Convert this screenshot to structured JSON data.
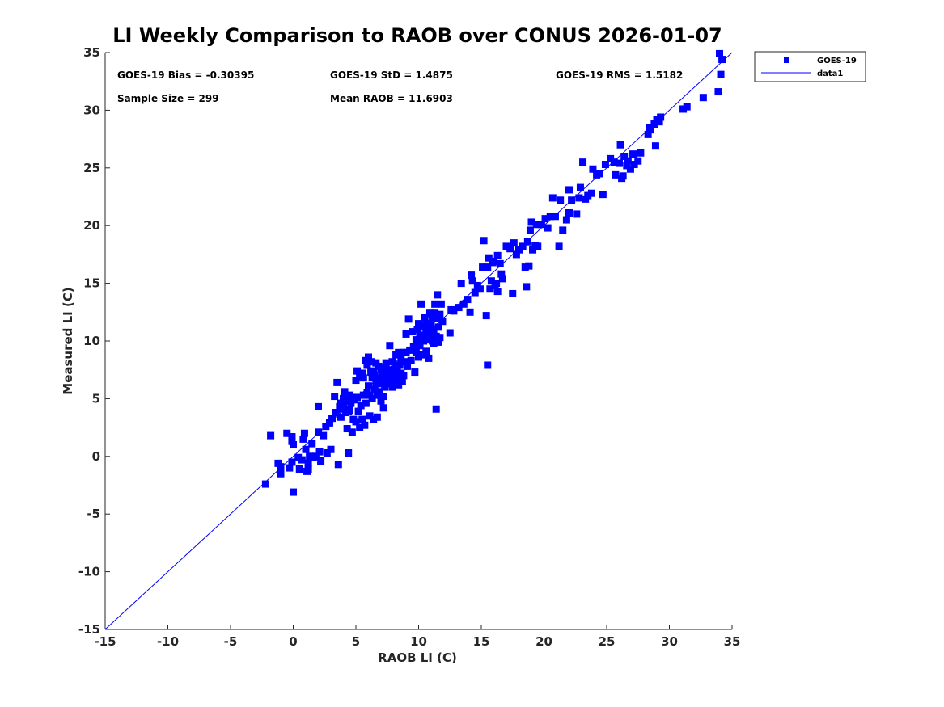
{
  "chart_data": {
    "type": "scatter",
    "title": "LI Weekly Comparison to RAOB over CONUS 2026-01-07",
    "xlabel": "RAOB LI (C)",
    "ylabel": "Measured LI (C)",
    "xlim": [
      -15,
      35
    ],
    "ylim": [
      -15,
      35
    ],
    "xticks": [
      -15,
      -10,
      -5,
      0,
      5,
      10,
      15,
      20,
      25,
      30,
      35
    ],
    "yticks": [
      -15,
      -10,
      -5,
      0,
      5,
      10,
      15,
      20,
      25,
      30,
      35
    ],
    "xtick_labels": [
      "-15",
      "-10",
      "-5",
      "0",
      "5",
      "10",
      "15",
      "20",
      "25",
      "30",
      "35"
    ],
    "ytick_labels": [
      "-15",
      "-10",
      "-5",
      "0",
      "5",
      "10",
      "15",
      "20",
      "25",
      "30",
      "35"
    ],
    "grid": false,
    "legend_position": "outside top-right",
    "series": [
      {
        "name": "GOES-19",
        "kind": "scatter",
        "marker": "square",
        "color": "#0000ff",
        "points": [
          [
            -2.2,
            -2.4
          ],
          [
            -1.8,
            1.8
          ],
          [
            -1.2,
            -0.6
          ],
          [
            -1.0,
            -1.5
          ],
          [
            -1.0,
            -0.9
          ],
          [
            -0.5,
            2.0
          ],
          [
            -0.3,
            -1.0
          ],
          [
            -0.1,
            1.3
          ],
          [
            -0.1,
            1.7
          ],
          [
            -0.1,
            -0.5
          ],
          [
            0.0,
            -3.1
          ],
          [
            0.0,
            1.0
          ],
          [
            0.4,
            -0.1
          ],
          [
            0.5,
            -1.1
          ],
          [
            0.7,
            -0.3
          ],
          [
            0.8,
            1.5
          ],
          [
            0.9,
            2.0
          ],
          [
            1.0,
            0.6
          ],
          [
            1.1,
            -1.3
          ],
          [
            1.2,
            -1.1
          ],
          [
            1.2,
            -0.6
          ],
          [
            1.3,
            0.0
          ],
          [
            1.5,
            1.1
          ],
          [
            1.6,
            -0.1
          ],
          [
            1.8,
            0.0
          ],
          [
            2.0,
            4.3
          ],
          [
            2.0,
            2.1
          ],
          [
            2.1,
            0.4
          ],
          [
            2.2,
            -0.4
          ],
          [
            2.4,
            1.8
          ],
          [
            2.6,
            2.6
          ],
          [
            2.7,
            0.3
          ],
          [
            2.9,
            2.9
          ],
          [
            3.0,
            0.6
          ],
          [
            3.1,
            3.3
          ],
          [
            3.3,
            5.2
          ],
          [
            3.4,
            3.8
          ],
          [
            3.5,
            6.4
          ],
          [
            3.6,
            -0.7
          ],
          [
            3.7,
            4.3
          ],
          [
            3.8,
            4.6
          ],
          [
            3.8,
            3.4
          ],
          [
            3.9,
            4.1
          ],
          [
            4.0,
            5.0
          ],
          [
            4.0,
            4.4
          ],
          [
            4.1,
            5.6
          ],
          [
            4.2,
            3.8
          ],
          [
            4.3,
            2.4
          ],
          [
            4.3,
            4.8
          ],
          [
            4.4,
            0.3
          ],
          [
            4.4,
            3.9
          ],
          [
            4.5,
            5.3
          ],
          [
            4.5,
            4.0
          ],
          [
            4.6,
            4.6
          ],
          [
            4.7,
            5.1
          ],
          [
            4.7,
            2.1
          ],
          [
            4.8,
            3.2
          ],
          [
            4.9,
            4.9
          ],
          [
            5.0,
            6.6
          ],
          [
            5.0,
            3.0
          ],
          [
            5.1,
            7.4
          ],
          [
            5.1,
            5.1
          ],
          [
            5.2,
            3.9
          ],
          [
            5.3,
            6.9
          ],
          [
            5.3,
            2.5
          ],
          [
            5.4,
            4.4
          ],
          [
            5.5,
            3.2
          ],
          [
            5.5,
            7.2
          ],
          [
            5.6,
            5.3
          ],
          [
            5.6,
            6.8
          ],
          [
            5.7,
            2.7
          ],
          [
            5.8,
            8.3
          ],
          [
            5.8,
            4.6
          ],
          [
            5.9,
            5.5
          ],
          [
            5.9,
            7.9
          ],
          [
            6.0,
            8.6
          ],
          [
            6.0,
            6.1
          ],
          [
            6.1,
            3.5
          ],
          [
            6.1,
            5.3
          ],
          [
            6.2,
            7.3
          ],
          [
            6.2,
            8.2
          ],
          [
            6.3,
            5.0
          ],
          [
            6.3,
            6.8
          ],
          [
            6.4,
            7.4
          ],
          [
            6.4,
            3.2
          ],
          [
            6.5,
            5.8
          ],
          [
            6.5,
            7.0
          ],
          [
            6.6,
            6.4
          ],
          [
            6.6,
            8.1
          ],
          [
            6.7,
            5.3
          ],
          [
            6.7,
            3.4
          ],
          [
            6.8,
            7.8
          ],
          [
            6.8,
            6.3
          ],
          [
            6.9,
            6.8
          ],
          [
            6.9,
            5.6
          ],
          [
            7.0,
            7.5
          ],
          [
            7.0,
            4.8
          ],
          [
            7.1,
            6.5
          ],
          [
            7.1,
            7.0
          ],
          [
            7.2,
            5.2
          ],
          [
            7.2,
            4.2
          ],
          [
            7.3,
            7.7
          ],
          [
            7.3,
            6.0
          ],
          [
            7.4,
            8.1
          ],
          [
            7.4,
            6.7
          ],
          [
            7.5,
            6.9
          ],
          [
            7.5,
            7.3
          ],
          [
            7.6,
            6.3
          ],
          [
            7.7,
            9.6
          ],
          [
            7.7,
            7.0
          ],
          [
            7.8,
            7.5
          ],
          [
            7.9,
            6.0
          ],
          [
            7.9,
            8.2
          ],
          [
            8.0,
            6.5
          ],
          [
            8.0,
            7.2
          ],
          [
            8.1,
            6.7
          ],
          [
            8.2,
            7.8
          ],
          [
            8.2,
            8.8
          ],
          [
            8.3,
            6.8
          ],
          [
            8.3,
            7.3
          ],
          [
            8.4,
            9.0
          ],
          [
            8.4,
            6.2
          ],
          [
            8.5,
            7.9
          ],
          [
            8.6,
            7.2
          ],
          [
            8.6,
            8.5
          ],
          [
            8.7,
            6.5
          ],
          [
            8.8,
            7.0
          ],
          [
            8.8,
            9.0
          ],
          [
            8.9,
            8.2
          ],
          [
            9.0,
            10.6
          ],
          [
            9.0,
            9.0
          ],
          [
            9.1,
            7.8
          ],
          [
            9.2,
            11.9
          ],
          [
            9.3,
            9.2
          ],
          [
            9.4,
            8.3
          ],
          [
            9.5,
            10.8
          ],
          [
            9.6,
            9.5
          ],
          [
            9.7,
            7.3
          ],
          [
            9.8,
            10.1
          ],
          [
            9.8,
            9.0
          ],
          [
            9.9,
            11.0
          ],
          [
            10.0,
            11.5
          ],
          [
            10.0,
            8.6
          ],
          [
            10.1,
            10.4
          ],
          [
            10.1,
            9.6
          ],
          [
            10.2,
            11.2
          ],
          [
            10.2,
            13.2
          ],
          [
            10.3,
            10.2
          ],
          [
            10.3,
            8.8
          ],
          [
            10.4,
            11.3
          ],
          [
            10.4,
            10.0
          ],
          [
            10.5,
            10.5
          ],
          [
            10.5,
            12.0
          ],
          [
            10.6,
            9.1
          ],
          [
            10.6,
            10.8
          ],
          [
            10.7,
            11.5
          ],
          [
            10.7,
            10.1
          ],
          [
            10.8,
            8.5
          ],
          [
            10.8,
            11.0
          ],
          [
            10.9,
            10.3
          ],
          [
            10.9,
            12.4
          ],
          [
            11.0,
            11.3
          ],
          [
            11.0,
            10.6
          ],
          [
            11.1,
            12.0
          ],
          [
            11.1,
            10.0
          ],
          [
            11.2,
            11.0
          ],
          [
            11.2,
            9.8
          ],
          [
            11.3,
            12.4
          ],
          [
            11.3,
            13.2
          ],
          [
            11.4,
            10.4
          ],
          [
            11.4,
            4.1
          ],
          [
            11.5,
            12.0
          ],
          [
            11.5,
            14.0
          ],
          [
            11.6,
            11.2
          ],
          [
            11.6,
            9.9
          ],
          [
            11.7,
            12.3
          ],
          [
            11.7,
            10.3
          ],
          [
            11.8,
            13.2
          ],
          [
            11.9,
            11.7
          ],
          [
            12.5,
            10.7
          ],
          [
            12.6,
            12.7
          ],
          [
            12.8,
            12.6
          ],
          [
            13.2,
            12.9
          ],
          [
            13.4,
            15.0
          ],
          [
            13.6,
            13.2
          ],
          [
            13.9,
            13.6
          ],
          [
            14.1,
            12.5
          ],
          [
            14.2,
            15.7
          ],
          [
            14.3,
            15.2
          ],
          [
            14.5,
            14.2
          ],
          [
            14.7,
            14.8
          ],
          [
            14.9,
            14.5
          ],
          [
            15.1,
            16.4
          ],
          [
            15.2,
            18.7
          ],
          [
            15.4,
            12.2
          ],
          [
            15.5,
            7.9
          ],
          [
            15.5,
            16.4
          ],
          [
            15.6,
            17.2
          ],
          [
            15.7,
            14.5
          ],
          [
            15.8,
            15.2
          ],
          [
            15.9,
            16.8
          ],
          [
            16.0,
            16.9
          ],
          [
            16.1,
            14.8
          ],
          [
            16.2,
            15.0
          ],
          [
            16.3,
            14.3
          ],
          [
            16.3,
            17.4
          ],
          [
            16.5,
            16.7
          ],
          [
            16.6,
            15.8
          ],
          [
            16.7,
            15.4
          ],
          [
            17.0,
            18.2
          ],
          [
            17.3,
            18.0
          ],
          [
            17.5,
            14.1
          ],
          [
            17.6,
            18.5
          ],
          [
            17.8,
            17.5
          ],
          [
            18.0,
            17.9
          ],
          [
            18.3,
            18.2
          ],
          [
            18.5,
            16.4
          ],
          [
            18.6,
            14.7
          ],
          [
            18.7,
            18.6
          ],
          [
            18.8,
            16.5
          ],
          [
            18.9,
            19.6
          ],
          [
            19.0,
            20.3
          ],
          [
            19.1,
            17.9
          ],
          [
            19.3,
            18.3
          ],
          [
            19.4,
            20.1
          ],
          [
            19.5,
            18.2
          ],
          [
            19.8,
            20.1
          ],
          [
            20.1,
            20.6
          ],
          [
            20.3,
            19.8
          ],
          [
            20.5,
            20.8
          ],
          [
            20.7,
            22.4
          ],
          [
            20.9,
            20.8
          ],
          [
            21.2,
            18.2
          ],
          [
            21.3,
            22.2
          ],
          [
            21.5,
            19.6
          ],
          [
            21.8,
            20.5
          ],
          [
            22.0,
            23.1
          ],
          [
            22.0,
            21.1
          ],
          [
            22.2,
            22.2
          ],
          [
            22.6,
            21.0
          ],
          [
            22.8,
            22.4
          ],
          [
            22.9,
            23.3
          ],
          [
            23.1,
            25.5
          ],
          [
            23.3,
            22.3
          ],
          [
            23.5,
            22.6
          ],
          [
            23.8,
            22.8
          ],
          [
            23.9,
            24.9
          ],
          [
            24.2,
            24.4
          ],
          [
            24.4,
            24.5
          ],
          [
            24.7,
            22.7
          ],
          [
            24.9,
            25.3
          ],
          [
            25.3,
            25.8
          ],
          [
            25.6,
            25.5
          ],
          [
            25.7,
            24.4
          ],
          [
            26.0,
            25.4
          ],
          [
            26.1,
            27.0
          ],
          [
            26.2,
            24.1
          ],
          [
            26.3,
            24.3
          ],
          [
            26.4,
            26.0
          ],
          [
            26.6,
            25.2
          ],
          [
            26.7,
            25.6
          ],
          [
            26.9,
            24.9
          ],
          [
            27.1,
            26.2
          ],
          [
            27.2,
            25.3
          ],
          [
            27.5,
            25.6
          ],
          [
            27.7,
            26.3
          ],
          [
            28.3,
            27.9
          ],
          [
            28.4,
            28.5
          ],
          [
            28.5,
            28.3
          ],
          [
            28.8,
            28.8
          ],
          [
            28.9,
            26.9
          ],
          [
            29.0,
            29.2
          ],
          [
            29.2,
            29.0
          ],
          [
            29.3,
            29.4
          ],
          [
            31.1,
            30.1
          ],
          [
            31.4,
            30.3
          ],
          [
            32.7,
            31.1
          ],
          [
            33.9,
            31.6
          ],
          [
            34.0,
            34.9
          ],
          [
            34.1,
            33.1
          ],
          [
            34.2,
            34.4
          ]
        ]
      },
      {
        "name": "data1",
        "kind": "line",
        "color": "#0000ff",
        "x": [
          -15,
          35
        ],
        "y": [
          -15,
          35
        ]
      }
    ],
    "legend": [
      {
        "label": "GOES-19",
        "marker": "square",
        "color": "#0000ff"
      },
      {
        "label": "data1",
        "marker": "line",
        "color": "#0000ff"
      }
    ],
    "annotations": {
      "bias": "GOES-19 Bias = -0.30395",
      "std": "GOES-19 StD = 1.4875",
      "rms": "GOES-19 RMS = 1.5182",
      "sample": "Sample Size = 299",
      "mean": "Mean RAOB = 11.6903"
    }
  }
}
